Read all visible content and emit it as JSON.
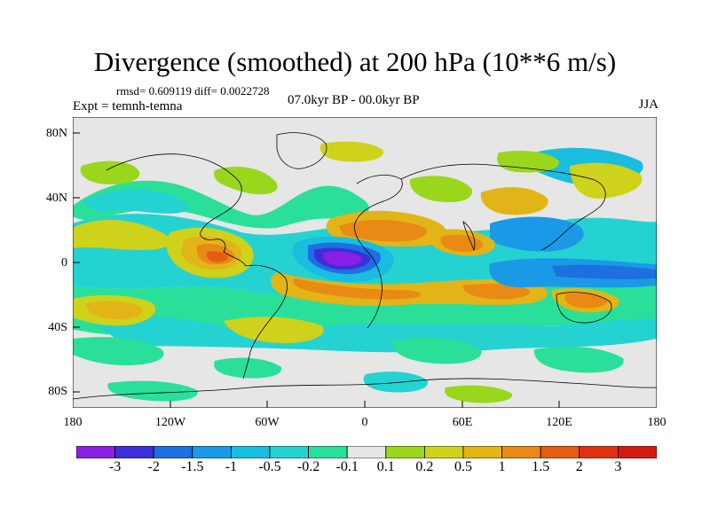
{
  "title": "Divergence (smoothed) at 200 hPa (10**6 m/s)",
  "stats_text": "rmsd= 0.609119 diff= 0.0022728",
  "experiment_text": "Expt = temnh-temna",
  "period_text": "07.0kyr BP - 00.0kyr BP",
  "season": "JJA",
  "y_axis_labels": [
    "80N",
    "40N",
    "0",
    "40S",
    "80S"
  ],
  "x_axis_labels": [
    "180",
    "120W",
    "60W",
    "0",
    "60E",
    "120E",
    "180"
  ],
  "colorbar": {
    "labels": [
      "-3",
      "-2",
      "-1.5",
      "-1",
      "-0.5",
      "-0.2",
      "-0.1",
      "0.1",
      "0.2",
      "0.5",
      "1",
      "1.5",
      "2",
      "3"
    ],
    "colors": [
      "#8a1fe6",
      "#3a2fd8",
      "#1e6fe0",
      "#1a9ae6",
      "#19bde0",
      "#24d2d2",
      "#2adf9a",
      "#e6e6e6",
      "#9ad61c",
      "#cfd21a",
      "#e3b417",
      "#e88a14",
      "#e45d12",
      "#e03212",
      "#d61a10"
    ]
  },
  "map_data": {
    "background_color": "#e6e6e6",
    "lon_range": [
      -180,
      180
    ],
    "lat_range": [
      -90,
      90
    ]
  }
}
